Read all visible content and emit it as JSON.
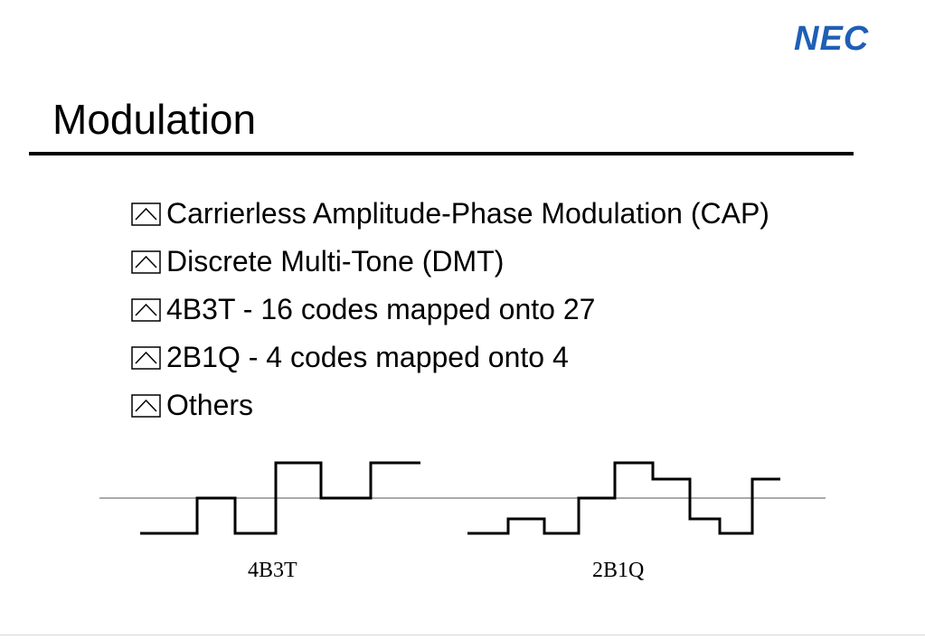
{
  "header": {
    "logo_text": "NEC",
    "brand_color": "#1f5fb5"
  },
  "slide": {
    "title": "Modulation",
    "bullet_icon": "checkbox-chevron-icon",
    "bullets": [
      {
        "text": "Carrierless Amplitude-Phase Modulation (CAP)"
      },
      {
        "text": "Discrete Multi-Tone (DMT)"
      },
      {
        "text": "4B3T - 16 codes mapped onto 27"
      },
      {
        "text": "2B1Q - 4 codes mapped onto 4"
      },
      {
        "text": "Others"
      }
    ]
  },
  "waveforms": {
    "left_label": "4B3T",
    "right_label": "2B1Q",
    "line_color": "#000000",
    "baseline_color": "#555555"
  }
}
